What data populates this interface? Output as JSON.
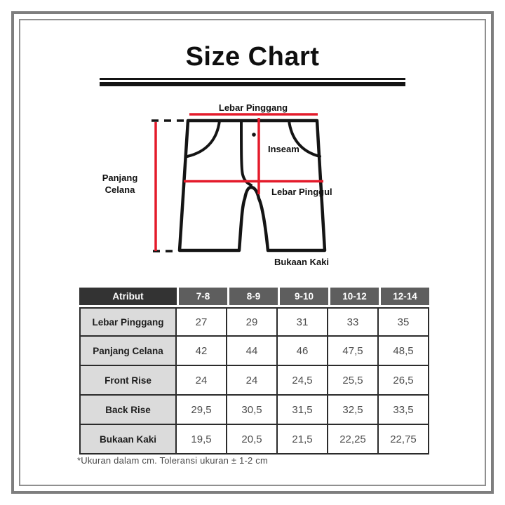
{
  "page": {
    "title": "Size Chart",
    "footnote": "*Ukuran dalam cm. Toleransi ukuran ± 1-2 cm"
  },
  "diagram": {
    "labels": {
      "waist": "Lebar Pinggang",
      "inseam": "Inseam",
      "length_lines": [
        "Panjang",
        "Celana"
      ],
      "hip": "Lebar Pinggul",
      "leg_opening": "Bukaan Kaki"
    },
    "colors": {
      "measure_line": "#E41B2B",
      "outline": "#141414"
    }
  },
  "table": {
    "header": [
      "Atribut",
      "7-8",
      "8-9",
      "9-10",
      "10-12",
      "12-14"
    ],
    "rows": [
      {
        "label": "Lebar Pinggang",
        "values": [
          "27",
          "29",
          "31",
          "33",
          "35"
        ]
      },
      {
        "label": "Panjang Celana",
        "values": [
          "42",
          "44",
          "46",
          "47,5",
          "48,5"
        ]
      },
      {
        "label": "Front Rise",
        "values": [
          "24",
          "24",
          "24,5",
          "25,5",
          "26,5"
        ]
      },
      {
        "label": "Back Rise",
        "values": [
          "29,5",
          "30,5",
          "31,5",
          "32,5",
          "33,5"
        ]
      },
      {
        "label": "Bukaan Kaki",
        "values": [
          "19,5",
          "20,5",
          "21,5",
          "22,25",
          "22,75"
        ]
      }
    ],
    "colors": {
      "attribute_header_bg": "#333333",
      "size_header_bg": "#5E5E5E",
      "label_cell_bg": "#DBDBDB",
      "grid_line": "#2B2B2B"
    }
  }
}
